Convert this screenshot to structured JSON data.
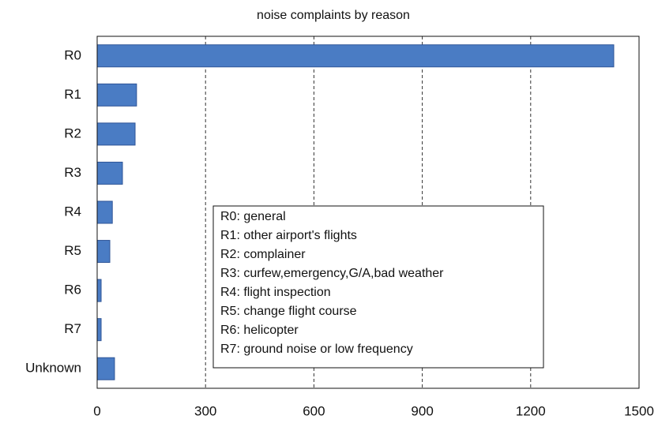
{
  "chart_data": {
    "type": "bar",
    "orientation": "horizontal",
    "title": "noise complaints by reason",
    "categories": [
      "R0",
      "R1",
      "R2",
      "R3",
      "R4",
      "R5",
      "R6",
      "R7",
      "Unknown"
    ],
    "values": [
      1430,
      109,
      105,
      70,
      42,
      35,
      11,
      11,
      48
    ],
    "color": "#4a7cc4",
    "xlim": [
      0,
      1500
    ],
    "xticks": [
      0,
      300,
      600,
      900,
      1200,
      1500
    ],
    "grid": true,
    "annotations": [
      "R0: general",
      "R1: other airport's flights",
      "R2: complainer",
      "R3: curfew,emergency,G/A,bad weather",
      "R4: flight inspection",
      "R5: change flight course",
      "R6: helicopter",
      "R7: ground noise or low frequency"
    ]
  }
}
